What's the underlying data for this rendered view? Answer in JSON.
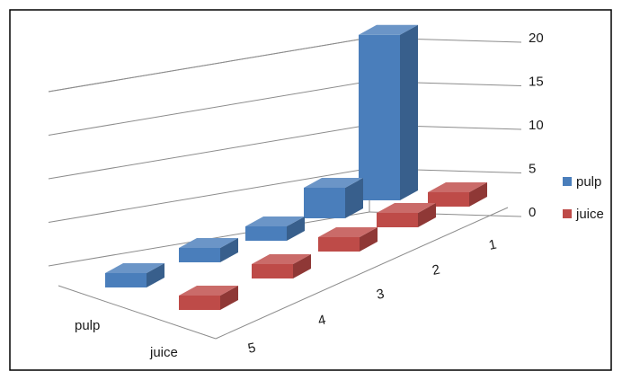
{
  "chart_data": {
    "type": "bar",
    "subtype": "3d-column",
    "categories": [
      "1",
      "2",
      "3",
      "4",
      "5"
    ],
    "series": [
      {
        "name": "pulp",
        "values": [
          19,
          3.5,
          1.5,
          1.5,
          1
        ]
      },
      {
        "name": "juice",
        "values": [
          0.8,
          1,
          1,
          1.2,
          1.3
        ]
      }
    ],
    "z_labels": [
      "pulp",
      "juice"
    ],
    "y_ticks": [
      "0",
      "5",
      "10",
      "15",
      "20"
    ],
    "ylim": [
      0,
      20
    ],
    "grid": true,
    "legend_position": "right",
    "colors": {
      "pulp": "#4a7ebb",
      "juice": "#be4b48"
    }
  }
}
